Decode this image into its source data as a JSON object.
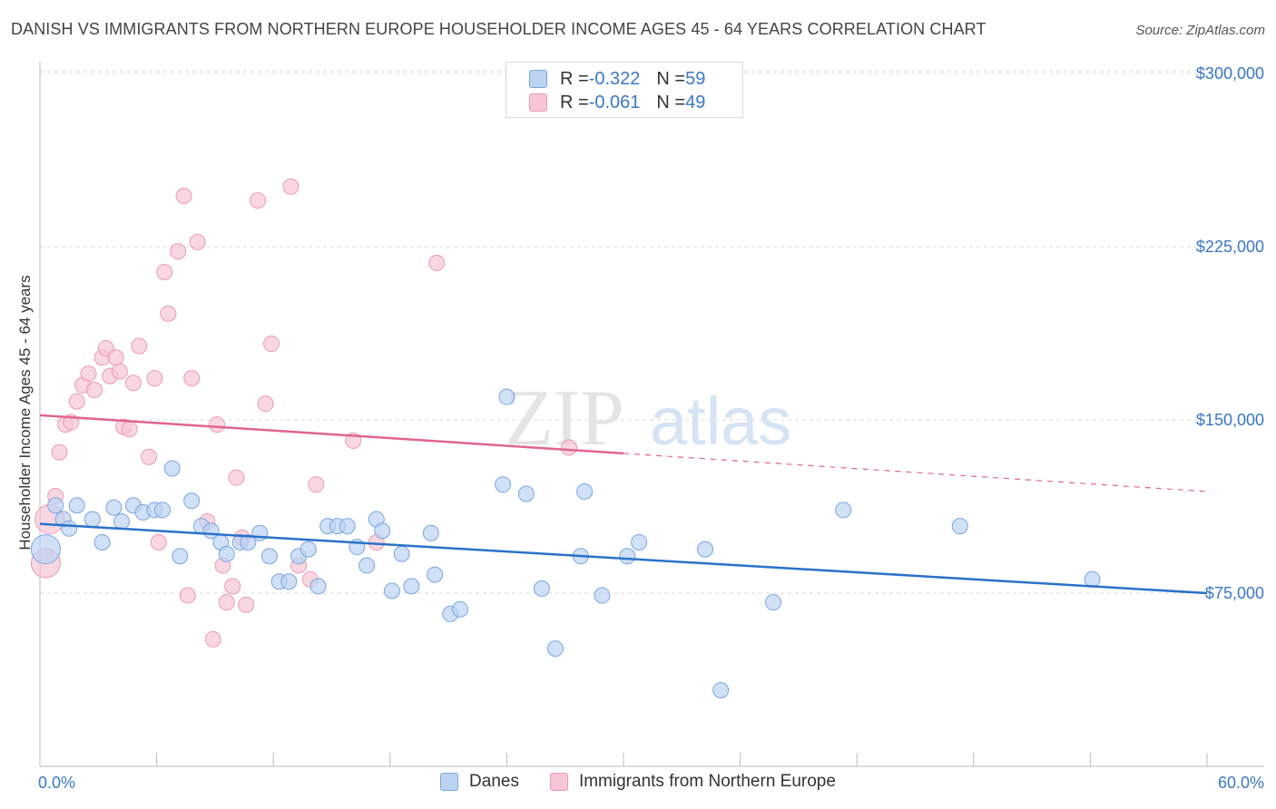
{
  "title": "DANISH VS IMMIGRANTS FROM NORTHERN EUROPE HOUSEHOLDER INCOME AGES 45 - 64 YEARS CORRELATION CHART",
  "source": "Source: ZipAtlas.com",
  "watermark": {
    "zip": "ZIP",
    "atlas": "atlas"
  },
  "legend_top": {
    "rows": [
      {
        "r_label": "R = ",
        "r_value": "-0.322",
        "n_label": "N = ",
        "n_value": "59"
      },
      {
        "r_label": "R = ",
        "r_value": "-0.061",
        "n_label": "N = ",
        "n_value": "49"
      }
    ]
  },
  "colors": {
    "danes_fill": "#bcd3f2",
    "danes_stroke": "#7aa6de",
    "danes_line": "#2a72c9",
    "immig_fill": "#f7c6d6",
    "immig_stroke": "#e99ab5",
    "immig_line": "#e0658c",
    "tick_text": "#3b78c4",
    "grid": "#d8d8d8"
  },
  "chart_data": {
    "type": "scatter",
    "title": "DANISH VS IMMIGRANTS FROM NORTHERN EUROPE HOUSEHOLDER INCOME AGES 45 - 64 YEARS CORRELATION CHART",
    "xlabel": "",
    "ylabel": "Householder Income Ages 45 - 64 years",
    "xlim": [
      0,
      60
    ],
    "ylim": [
      0,
      315000
    ],
    "y_ticks": [
      75000,
      150000,
      225000,
      300000
    ],
    "y_tick_labels": [
      "$75,000",
      "$150,000",
      "$225,000",
      "$300,000"
    ],
    "x_tick_labels": [
      "0.0%",
      "60.0%"
    ],
    "grid": true,
    "legend": [
      "Danes",
      "Immigrants from Northern Europe"
    ],
    "series": [
      {
        "name": "Danes",
        "r": -0.322,
        "n": 59,
        "trend": {
          "x": [
            0,
            60
          ],
          "y": [
            105000,
            75000
          ],
          "dashed_from": null
        },
        "points": [
          [
            0.3,
            94000
          ],
          [
            0.8,
            113000
          ],
          [
            1.2,
            107000
          ],
          [
            1.5,
            103000
          ],
          [
            1.9,
            113000
          ],
          [
            2.7,
            107000
          ],
          [
            3.2,
            97000
          ],
          [
            3.8,
            112000
          ],
          [
            4.2,
            106000
          ],
          [
            4.8,
            113000
          ],
          [
            5.3,
            110000
          ],
          [
            5.9,
            111000
          ],
          [
            6.3,
            111000
          ],
          [
            6.8,
            129000
          ],
          [
            7.2,
            91000
          ],
          [
            7.8,
            115000
          ],
          [
            8.3,
            104000
          ],
          [
            8.8,
            102000
          ],
          [
            9.3,
            97000
          ],
          [
            9.6,
            92000
          ],
          [
            10.3,
            97000
          ],
          [
            10.7,
            97000
          ],
          [
            11.3,
            101000
          ],
          [
            11.8,
            91000
          ],
          [
            12.3,
            80000
          ],
          [
            12.8,
            80000
          ],
          [
            13.3,
            91000
          ],
          [
            13.8,
            94000
          ],
          [
            14.3,
            78000
          ],
          [
            14.8,
            104000
          ],
          [
            15.3,
            104000
          ],
          [
            15.8,
            104000
          ],
          [
            16.3,
            95000
          ],
          [
            16.8,
            87000
          ],
          [
            17.3,
            107000
          ],
          [
            17.6,
            102000
          ],
          [
            18.1,
            76000
          ],
          [
            18.6,
            92000
          ],
          [
            19.1,
            78000
          ],
          [
            20.1,
            101000
          ],
          [
            20.3,
            83000
          ],
          [
            21.1,
            66000
          ],
          [
            21.6,
            68000
          ],
          [
            23.8,
            122000
          ],
          [
            24.0,
            160000
          ],
          [
            25.0,
            118000
          ],
          [
            25.8,
            77000
          ],
          [
            26.5,
            51000
          ],
          [
            27.8,
            91000
          ],
          [
            28.0,
            119000
          ],
          [
            28.9,
            74000
          ],
          [
            30.2,
            91000
          ],
          [
            30.8,
            97000
          ],
          [
            34.2,
            94000
          ],
          [
            35.0,
            33000
          ],
          [
            37.7,
            71000
          ],
          [
            41.3,
            111000
          ],
          [
            47.3,
            104000
          ],
          [
            54.1,
            81000
          ]
        ]
      },
      {
        "name": "Immigrants from Northern Europe",
        "r": -0.061,
        "n": 49,
        "trend": {
          "x": [
            0,
            60
          ],
          "y": [
            152000,
            119000
          ],
          "dashed_from": 30
        },
        "points": [
          [
            0.3,
            88000
          ],
          [
            0.5,
            107000
          ],
          [
            0.8,
            117000
          ],
          [
            1.0,
            136000
          ],
          [
            1.3,
            148000
          ],
          [
            1.6,
            149000
          ],
          [
            1.9,
            158000
          ],
          [
            2.2,
            165000
          ],
          [
            2.5,
            170000
          ],
          [
            2.8,
            163000
          ],
          [
            3.2,
            177000
          ],
          [
            3.4,
            181000
          ],
          [
            3.6,
            169000
          ],
          [
            3.9,
            177000
          ],
          [
            4.1,
            171000
          ],
          [
            4.3,
            147000
          ],
          [
            4.6,
            146000
          ],
          [
            4.8,
            166000
          ],
          [
            5.1,
            182000
          ],
          [
            5.6,
            134000
          ],
          [
            5.9,
            168000
          ],
          [
            6.1,
            97000
          ],
          [
            6.4,
            214000
          ],
          [
            6.6,
            196000
          ],
          [
            7.1,
            223000
          ],
          [
            7.4,
            247000
          ],
          [
            7.6,
            74000
          ],
          [
            7.8,
            168000
          ],
          [
            8.1,
            227000
          ],
          [
            8.6,
            106000
          ],
          [
            8.9,
            55000
          ],
          [
            9.1,
            148000
          ],
          [
            9.4,
            87000
          ],
          [
            9.6,
            71000
          ],
          [
            9.9,
            78000
          ],
          [
            10.1,
            125000
          ],
          [
            10.4,
            99000
          ],
          [
            10.6,
            70000
          ],
          [
            11.2,
            245000
          ],
          [
            11.6,
            157000
          ],
          [
            11.9,
            183000
          ],
          [
            12.9,
            251000
          ],
          [
            13.3,
            87000
          ],
          [
            13.9,
            81000
          ],
          [
            14.2,
            122000
          ],
          [
            16.1,
            141000
          ],
          [
            17.3,
            97000
          ],
          [
            20.4,
            218000
          ],
          [
            27.2,
            138000
          ]
        ]
      }
    ]
  }
}
